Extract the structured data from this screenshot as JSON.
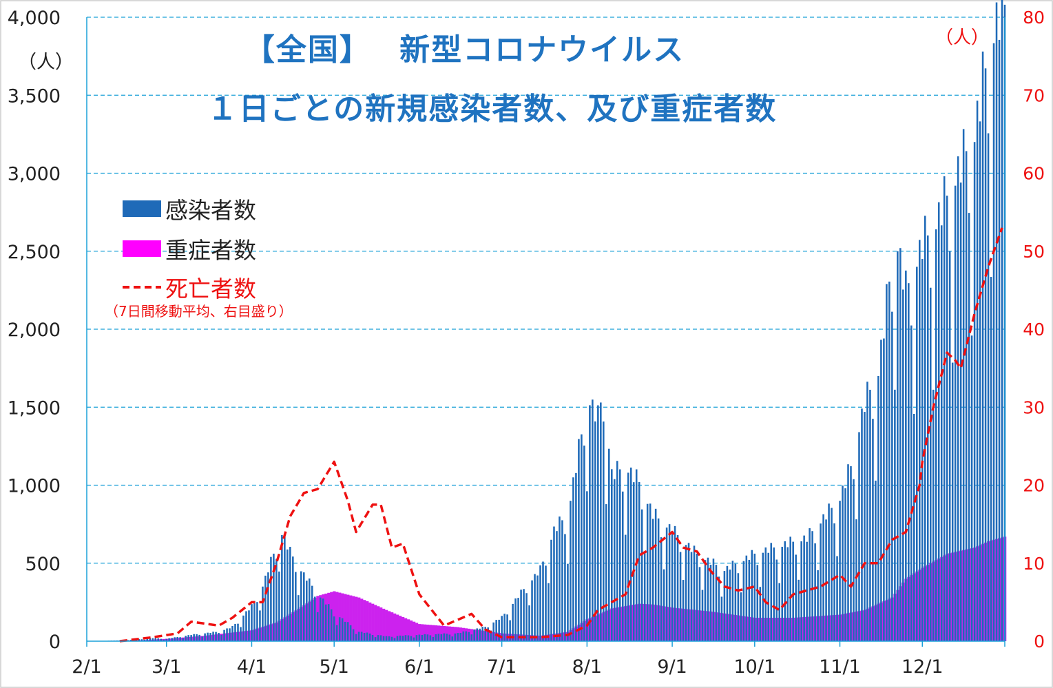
{
  "title_line1": "【全国】　 新型コロナウイルス",
  "title_line2": "１日ごとの新規感染者数、及び重症者数",
  "left_unit": "（人）",
  "right_unit": "（人）",
  "legend": {
    "cases_label": "感染者数",
    "severe_label": "重症者数",
    "deaths_label": "死亡者数",
    "deaths_note": "（7日間移動平均、右目盛り）"
  },
  "colors": {
    "cases": "#1f6ab8",
    "severe": "#cc22ee",
    "deaths": "#ee1111",
    "grid": "#1aa0d8",
    "left_axis_text": "#222222",
    "right_axis_text": "#ee1111",
    "title": "#1f73c0"
  },
  "chart_data": {
    "type": "bar",
    "x_tick_labels": [
      "2/1",
      "3/1",
      "4/1",
      "5/1",
      "6/1",
      "7/1",
      "8/1",
      "9/1",
      "10/1",
      "11/1",
      "12/1"
    ],
    "left_axis": {
      "ylim": [
        0,
        4000
      ],
      "ticks": [
        0,
        500,
        1000,
        1500,
        2000,
        2500,
        3000,
        3500,
        4000
      ],
      "tick_labels": [
        "0",
        "500",
        "1,000",
        "1,500",
        "2,000",
        "2,500",
        "3,000",
        "3,500",
        "4,000"
      ]
    },
    "right_axis": {
      "ylim": [
        0,
        80
      ],
      "ticks": [
        0,
        10,
        20,
        30,
        40,
        50,
        60,
        70,
        80
      ],
      "tick_labels": [
        "0",
        "10",
        "20",
        "30",
        "40",
        "50",
        "60",
        "70",
        "80"
      ]
    },
    "grid": true,
    "legend_position": "left",
    "series": [
      {
        "name": "感染者数",
        "type": "bar",
        "axis": "left",
        "points": [
          [
            "2/1",
            0
          ],
          [
            "2/15",
            5
          ],
          [
            "2/25",
            20
          ],
          [
            "3/1",
            15
          ],
          [
            "3/10",
            40
          ],
          [
            "3/20",
            60
          ],
          [
            "3/25",
            90
          ],
          [
            "4/1",
            220
          ],
          [
            "4/5",
            350
          ],
          [
            "4/10",
            600
          ],
          [
            "4/11",
            720
          ],
          [
            "4/15",
            560
          ],
          [
            "4/20",
            420
          ],
          [
            "4/25",
            300
          ],
          [
            "5/1",
            180
          ],
          [
            "5/10",
            60
          ],
          [
            "5/20",
            30
          ],
          [
            "6/1",
            40
          ],
          [
            "6/15",
            50
          ],
          [
            "6/25",
            90
          ],
          [
            "7/1",
            150
          ],
          [
            "7/10",
            350
          ],
          [
            "7/15",
            450
          ],
          [
            "7/20",
            700
          ],
          [
            "7/25",
            800
          ],
          [
            "7/30",
            1300
          ],
          [
            "8/1",
            1550
          ],
          [
            "8/5",
            1400
          ],
          [
            "8/7",
            1600
          ],
          [
            "8/10",
            1050
          ],
          [
            "8/15",
            1100
          ],
          [
            "8/20",
            1000
          ],
          [
            "8/25",
            800
          ],
          [
            "9/1",
            700
          ],
          [
            "9/10",
            550
          ],
          [
            "9/20",
            450
          ],
          [
            "10/1",
            550
          ],
          [
            "10/10",
            600
          ],
          [
            "10/20",
            650
          ],
          [
            "11/1",
            900
          ],
          [
            "11/5",
            1100
          ],
          [
            "11/10",
            1500
          ],
          [
            "11/15",
            1700
          ],
          [
            "11/20",
            2400
          ],
          [
            "11/21",
            2600
          ],
          [
            "11/25",
            2200
          ],
          [
            "12/1",
            2500
          ],
          [
            "12/5",
            2600
          ],
          [
            "12/10",
            2800
          ],
          [
            "12/15",
            3000
          ],
          [
            "12/20",
            3200
          ],
          [
            "12/25",
            3700
          ],
          [
            "12/28",
            3900
          ],
          [
            "12/31",
            4000
          ]
        ]
      },
      {
        "name": "重症者数",
        "type": "area",
        "axis": "left",
        "points": [
          [
            "2/1",
            0
          ],
          [
            "2/20",
            5
          ],
          [
            "3/1",
            15
          ],
          [
            "3/15",
            35
          ],
          [
            "4/1",
            70
          ],
          [
            "4/10",
            120
          ],
          [
            "4/20",
            230
          ],
          [
            "4/25",
            290
          ],
          [
            "5/1",
            320
          ],
          [
            "5/10",
            280
          ],
          [
            "5/20",
            200
          ],
          [
            "6/1",
            110
          ],
          [
            "6/15",
            90
          ],
          [
            "7/1",
            50
          ],
          [
            "7/15",
            35
          ],
          [
            "7/25",
            60
          ],
          [
            "8/1",
            140
          ],
          [
            "8/10",
            210
          ],
          [
            "8/20",
            240
          ],
          [
            "8/25",
            235
          ],
          [
            "9/1",
            215
          ],
          [
            "9/15",
            190
          ],
          [
            "10/1",
            150
          ],
          [
            "10/15",
            150
          ],
          [
            "11/1",
            170
          ],
          [
            "11/10",
            200
          ],
          [
            "11/20",
            280
          ],
          [
            "11/25",
            400
          ],
          [
            "12/1",
            470
          ],
          [
            "12/10",
            560
          ],
          [
            "12/20",
            600
          ],
          [
            "12/25",
            640
          ],
          [
            "12/31",
            670
          ]
        ]
      },
      {
        "name": "死亡者数",
        "type": "line",
        "axis": "right",
        "points": [
          [
            "2/13",
            0
          ],
          [
            "2/25",
            0.5
          ],
          [
            "3/5",
            1
          ],
          [
            "3/10",
            2.5
          ],
          [
            "3/20",
            2
          ],
          [
            "3/25",
            3
          ],
          [
            "4/1",
            5
          ],
          [
            "4/5",
            5
          ],
          [
            "4/10",
            10
          ],
          [
            "4/15",
            16
          ],
          [
            "4/20",
            19
          ],
          [
            "4/25",
            19.5
          ],
          [
            "5/1",
            23
          ],
          [
            "5/6",
            18
          ],
          [
            "5/9",
            14
          ],
          [
            "5/15",
            17.5
          ],
          [
            "5/18",
            17.5
          ],
          [
            "5/22",
            12
          ],
          [
            "5/26",
            12.5
          ],
          [
            "6/1",
            6
          ],
          [
            "6/10",
            2
          ],
          [
            "6/20",
            3.5
          ],
          [
            "6/25",
            1.5
          ],
          [
            "7/1",
            0.5
          ],
          [
            "7/15",
            0.5
          ],
          [
            "7/25",
            0.8
          ],
          [
            "8/1",
            2
          ],
          [
            "8/5",
            4
          ],
          [
            "8/15",
            6
          ],
          [
            "8/20",
            11
          ],
          [
            "8/25",
            12
          ],
          [
            "9/1",
            14
          ],
          [
            "9/5",
            12
          ],
          [
            "9/10",
            11.5
          ],
          [
            "9/15",
            9
          ],
          [
            "9/20",
            7
          ],
          [
            "9/25",
            6.5
          ],
          [
            "10/1",
            7
          ],
          [
            "10/5",
            5
          ],
          [
            "10/10",
            4
          ],
          [
            "10/15",
            6
          ],
          [
            "10/20",
            6.5
          ],
          [
            "10/25",
            7
          ],
          [
            "11/1",
            8.5
          ],
          [
            "11/5",
            7
          ],
          [
            "11/10",
            10
          ],
          [
            "11/15",
            10
          ],
          [
            "11/20",
            13
          ],
          [
            "11/25",
            14
          ],
          [
            "11/30",
            20
          ],
          [
            "12/1",
            23
          ],
          [
            "12/5",
            30
          ],
          [
            "12/10",
            37
          ],
          [
            "12/13",
            36
          ],
          [
            "12/15",
            35
          ],
          [
            "12/20",
            42
          ],
          [
            "12/25",
            48
          ],
          [
            "12/30",
            53
          ]
        ]
      }
    ]
  }
}
